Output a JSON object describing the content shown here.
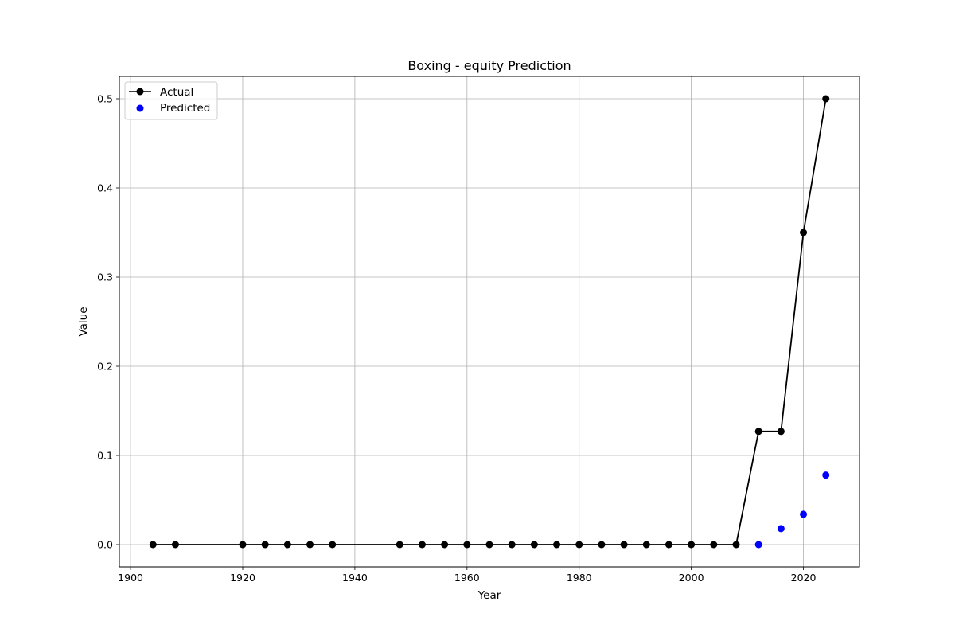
{
  "chart_data": {
    "type": "line",
    "title": "Boxing - equity Prediction",
    "xlabel": "Year",
    "ylabel": "Value",
    "xlim": [
      1898,
      2030
    ],
    "ylim": [
      -0.025,
      0.525
    ],
    "xticks": [
      1900,
      1920,
      1940,
      1960,
      1980,
      2000,
      2020
    ],
    "yticks": [
      0.0,
      0.1,
      0.2,
      0.3,
      0.4,
      0.5
    ],
    "xtick_labels": [
      "1900",
      "1920",
      "1940",
      "1960",
      "1980",
      "2000",
      "2020"
    ],
    "ytick_labels": [
      "0.0",
      "0.1",
      "0.2",
      "0.3",
      "0.4",
      "0.5"
    ],
    "grid": true,
    "legend_position": "top-left",
    "series": [
      {
        "name": "Actual",
        "style": "line-marker",
        "color": "#000000",
        "x": [
          1904,
          1908,
          1920,
          1924,
          1928,
          1932,
          1936,
          1948,
          1952,
          1956,
          1960,
          1964,
          1968,
          1972,
          1976,
          1980,
          1984,
          1988,
          1992,
          1996,
          2000,
          2004,
          2008,
          2012,
          2016,
          2020,
          2024
        ],
        "y": [
          0,
          0,
          0,
          0,
          0,
          0,
          0,
          0,
          0,
          0,
          0,
          0,
          0,
          0,
          0,
          0,
          0,
          0,
          0,
          0,
          0,
          0,
          0,
          0.127,
          0.127,
          0.35,
          0.5
        ]
      },
      {
        "name": "Predicted",
        "style": "scatter",
        "color": "#0000ff",
        "x": [
          2012,
          2016,
          2020,
          2024
        ],
        "y": [
          0.0,
          0.018,
          0.034,
          0.078
        ]
      }
    ]
  }
}
